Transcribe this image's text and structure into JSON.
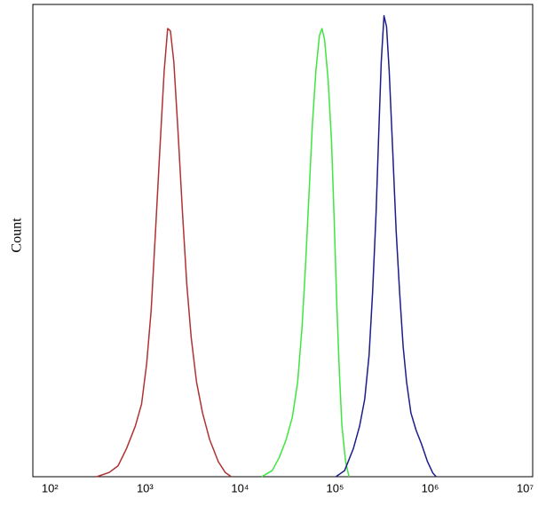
{
  "chart_data": {
    "type": "line",
    "ylabel": "Count",
    "xscale": "log",
    "xlim": [
      66,
      12000000
    ],
    "ylim": [
      0,
      100
    ],
    "xticks": [
      {
        "value": 100,
        "label": "10²"
      },
      {
        "value": 1000,
        "label": "10³"
      },
      {
        "value": 10000,
        "label": "10⁴"
      },
      {
        "value": 100000,
        "label": "10⁵"
      },
      {
        "value": 1000000,
        "label": "10⁶"
      },
      {
        "value": 10000000,
        "label": "10⁷"
      }
    ],
    "grid": false,
    "series": [
      {
        "color": "#b03232",
        "x": [
          310,
          420,
          520,
          640,
          790,
          920,
          1040,
          1160,
          1290,
          1430,
          1590,
          1730,
          1850,
          2010,
          2230,
          2480,
          2750,
          3060,
          3480,
          4030,
          4780,
          5900,
          6980,
          8090
        ],
        "values": [
          0,
          0.9,
          2.3,
          6.0,
          10.7,
          15.4,
          23.9,
          35.2,
          52.1,
          69.0,
          85.9,
          94.9,
          94.4,
          87.8,
          72.7,
          55.8,
          40.8,
          29.5,
          20.1,
          13.5,
          7.9,
          3.2,
          0.9,
          0
        ]
      },
      {
        "color": "#3ee63e",
        "x": [
          16900,
          21800,
          25900,
          30600,
          35500,
          40400,
          44800,
          48800,
          53100,
          57700,
          62800,
          68400,
          72800,
          77600,
          84500,
          91800,
          98000,
          104000,
          111000,
          118000,
          129000,
          140000
        ],
        "values": [
          0,
          1.3,
          4.1,
          7.9,
          12.6,
          20.1,
          31.4,
          44.5,
          59.6,
          74.6,
          85.9,
          93.4,
          94.9,
          92.5,
          84.0,
          70.9,
          53.9,
          37.0,
          22.0,
          10.7,
          3.2,
          0
        ]
      },
      {
        "color": "#1c1c8c",
        "x": [
          102000,
          126000,
          156000,
          181000,
          205000,
          228000,
          248000,
          270000,
          288000,
          306000,
          327000,
          348000,
          371000,
          404000,
          439000,
          478000,
          520000,
          565000,
          628000,
          713000,
          809000,
          938000,
          1066000,
          1159000
        ],
        "values": [
          0,
          1.3,
          6.0,
          10.7,
          16.4,
          25.8,
          38.9,
          55.8,
          72.7,
          87.8,
          97.6,
          95.3,
          85.9,
          69.0,
          52.1,
          38.9,
          27.6,
          20.1,
          13.5,
          9.8,
          7.0,
          3.2,
          0.8,
          0
        ]
      }
    ]
  }
}
